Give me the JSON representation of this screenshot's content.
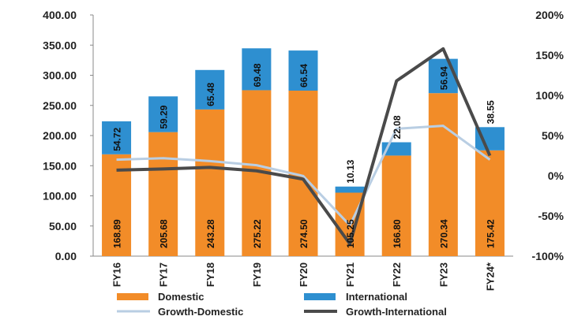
{
  "chart_data": {
    "type": "bar",
    "stacked": true,
    "categories": [
      "FY16",
      "FY17",
      "FY18",
      "FY19",
      "FY20",
      "FY21",
      "FY22",
      "FY23",
      "FY24*"
    ],
    "series": [
      {
        "name": "Domestic",
        "values": [
          168.89,
          205.68,
          243.28,
          275.22,
          274.5,
          105.25,
          166.8,
          270.34,
          175.42
        ],
        "labels": [
          "168.89",
          "205.68",
          "243.28",
          "275.22",
          "274.50",
          "105.25",
          "166.80",
          "270.34",
          "175.42"
        ],
        "color": "#F28C28"
      },
      {
        "name": "International",
        "values": [
          54.72,
          59.29,
          65.48,
          69.48,
          66.54,
          10.13,
          22.08,
          56.94,
          38.55
        ],
        "labels": [
          "54.72",
          "59.29",
          "65.48",
          "69.48",
          "66.54",
          "10.13",
          "22.08",
          "56.94",
          "38.55"
        ],
        "color": "#2E8FD0"
      }
    ],
    "line_series": [
      {
        "name": "Growth-Domestic",
        "axis": "right",
        "values": [
          20,
          21.8,
          18.3,
          13.1,
          -0.3,
          -61.7,
          58.5,
          62.1,
          20
        ],
        "color": "#B9CEE3"
      },
      {
        "name": "Growth-International",
        "axis": "right",
        "values": [
          7,
          8.4,
          10.4,
          6.1,
          -4.2,
          -84.8,
          118.0,
          157.9,
          25
        ],
        "color": "#4A4A4A"
      }
    ],
    "y_left": {
      "min": 0,
      "max": 400,
      "ticks": [
        "0.00",
        "50.00",
        "100.00",
        "150.00",
        "200.00",
        "250.00",
        "300.00",
        "350.00",
        "400.00"
      ]
    },
    "y_right": {
      "min": -100,
      "max": 200,
      "ticks": [
        "-100%",
        "-50%",
        "0%",
        "50%",
        "100%",
        "150%",
        "200%"
      ]
    },
    "legend": {
      "position": "bottom",
      "items": [
        "Domestic",
        "International",
        "Growth-Domestic",
        "Growth-International"
      ]
    },
    "grid": false
  }
}
